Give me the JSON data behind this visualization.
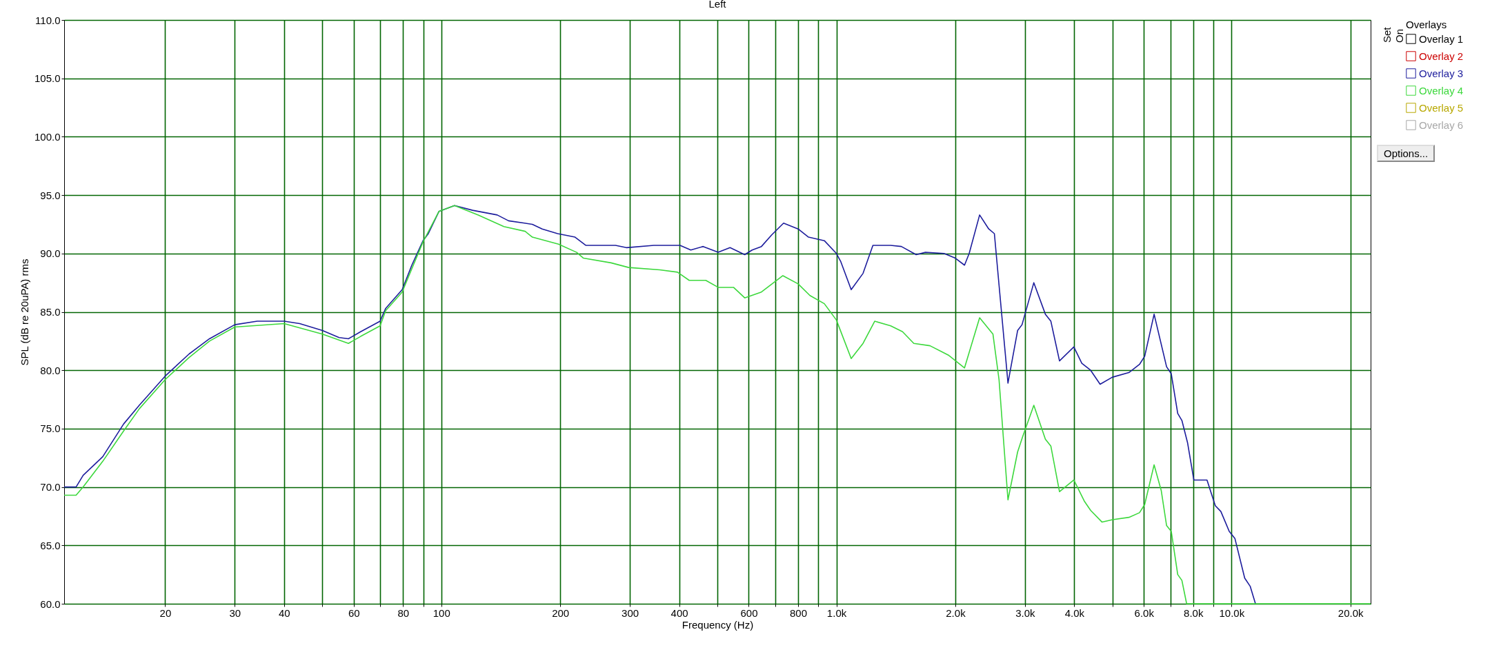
{
  "chart_data": {
    "type": "line",
    "title": "Left",
    "xlabel": "Frequency (Hz)",
    "ylabel": "SPL (dB re 20uPA) rms",
    "legend_title": "Overlays",
    "log": "x",
    "grid": true,
    "legend": "top right",
    "xlim": [
      11.1,
      22500
    ],
    "ylim": [
      60,
      110
    ],
    "xticks": [
      20,
      30,
      40,
      {
        "value": 50,
        "label": null
      },
      60,
      {
        "value": 70,
        "label": null
      },
      80,
      {
        "value": 90,
        "label": null
      },
      100,
      200,
      300,
      400,
      {
        "value": 500,
        "label": null
      },
      600,
      {
        "value": 700,
        "label": null
      },
      800,
      {
        "value": 900,
        "label": null
      },
      {
        "value": 1000,
        "label": "1.0k"
      },
      {
        "value": 2000,
        "label": "2.0k"
      },
      {
        "value": 3000,
        "label": "3.0k"
      },
      {
        "value": 4000,
        "label": "4.0k"
      },
      {
        "value": 5000,
        "label": null
      },
      {
        "value": 6000,
        "label": "6.0k"
      },
      {
        "value": 7000,
        "label": null
      },
      {
        "value": 8000,
        "label": "8.0k"
      },
      {
        "value": 9000,
        "label": null
      },
      {
        "value": 10000,
        "label": "10.0k"
      },
      {
        "value": 20000,
        "label": "20.0k"
      }
    ],
    "yticks": [
      {
        "value": 60,
        "label": "60.0"
      },
      {
        "value": 65,
        "label": "65.0"
      },
      {
        "value": 70,
        "label": "70.0"
      },
      {
        "value": 75,
        "label": "75.0"
      },
      {
        "value": 80,
        "label": "80.0"
      },
      {
        "value": 85,
        "label": "85.0"
      },
      {
        "value": 90,
        "label": "90.0"
      },
      {
        "value": 95,
        "label": "95.0"
      },
      {
        "value": 100,
        "label": "100.0"
      },
      {
        "value": 105,
        "label": "105.0"
      },
      {
        "value": 110,
        "label": "110.0"
      }
    ],
    "annotations": [
      "Set",
      "On",
      "Options..."
    ],
    "series": [
      {
        "name": "Overlay 1",
        "color": "#000000"
      },
      {
        "name": "Overlay 2",
        "color": "#cc0000"
      },
      {
        "name": "Overlay 3",
        "color": "#1c1c9c",
        "x": [
          11.1,
          11.9,
          12.4,
          13.9,
          15.7,
          17.2,
          20,
          23.0,
          25.9,
          30,
          34.2,
          40,
          43.8,
          50,
          55.1,
          58.2,
          62.5,
          70,
          72.3,
          79.6,
          84.2,
          89.9,
          92.7,
          98.6,
          108,
          120,
          138.5,
          148,
          170,
          180,
          197,
          218,
          232,
          276,
          294,
          345,
          402,
          428,
          460,
          502,
          538,
          586,
          612,
          646,
          686,
          735,
          800,
          850,
          932,
          1000,
          1026,
          1090,
          1168,
          1237,
          1372,
          1460,
          1592,
          1680,
          1873,
          2000,
          2110,
          2168,
          2304,
          2430,
          2511,
          2580,
          2718,
          2875,
          2950,
          3160,
          3380,
          3490,
          3670,
          3990,
          4180,
          4400,
          4650,
          4990,
          5500,
          5850,
          6030,
          6370,
          6850,
          7040,
          7310,
          7490,
          7740,
          8030,
          8670,
          9100,
          9400,
          9870,
          10200,
          10800,
          11150,
          11500
        ],
        "values": [
          70.0,
          70.0,
          71.0,
          72.6,
          75.4,
          77.0,
          79.5,
          81.4,
          82.7,
          83.9,
          84.2,
          84.2,
          84.0,
          83.4,
          82.8,
          82.7,
          83.3,
          84.2,
          85.3,
          86.9,
          89.0,
          91.1,
          91.7,
          93.6,
          94.1,
          93.7,
          93.3,
          92.8,
          92.5,
          92.1,
          91.7,
          91.4,
          90.7,
          90.7,
          90.5,
          90.7,
          90.7,
          90.3,
          90.6,
          90.1,
          90.5,
          89.9,
          90.3,
          90.6,
          91.6,
          92.6,
          92.1,
          91.4,
          91.1,
          90.0,
          89.3,
          86.9,
          88.3,
          90.7,
          90.7,
          90.6,
          89.9,
          90.1,
          90.0,
          89.6,
          89.0,
          90.0,
          93.3,
          92.1,
          91.7,
          87.3,
          78.9,
          83.4,
          83.9,
          87.5,
          84.8,
          84.2,
          80.8,
          82.0,
          80.6,
          80.0,
          78.8,
          79.4,
          79.8,
          80.5,
          81.2,
          84.8,
          80.3,
          79.7,
          76.3,
          75.7,
          73.8,
          70.6,
          70.6,
          68.4,
          67.9,
          66.2,
          65.6,
          62.2,
          61.5,
          60.0
        ]
      },
      {
        "name": "Overlay 4",
        "color": "#3cd83c",
        "x": [
          11.1,
          11.9,
          12.4,
          13.9,
          15.7,
          17.2,
          20,
          23.0,
          25.9,
          30,
          40,
          50,
          58.2,
          62.5,
          70,
          72.3,
          79.6,
          84.2,
          89.9,
          98.6,
          108,
          124,
          144,
          163,
          170,
          198,
          220,
          229,
          269,
          298,
          357,
          396,
          424,
          467,
          502,
          549,
          586,
          646,
          732,
          800,
          857,
          932,
          1000,
          1090,
          1168,
          1250,
          1372,
          1470,
          1570,
          1725,
          1920,
          2110,
          2304,
          2490,
          2580,
          2718,
          2875,
          2960,
          3160,
          3380,
          3490,
          3670,
          3990,
          4240,
          4400,
          4700,
          5000,
          5500,
          5850,
          6030,
          6370,
          6640,
          6850,
          7040,
          7310,
          7490,
          7700,
          22500
        ],
        "values": [
          69.3,
          69.3,
          70.0,
          72.2,
          74.8,
          76.7,
          79.2,
          81.1,
          82.5,
          83.7,
          84.0,
          83.1,
          82.3,
          82.9,
          83.8,
          85.1,
          86.7,
          88.7,
          91.0,
          93.6,
          94.1,
          93.3,
          92.3,
          91.9,
          91.4,
          90.8,
          90.1,
          89.6,
          89.2,
          88.8,
          88.6,
          88.4,
          87.7,
          87.7,
          87.1,
          87.1,
          86.2,
          86.7,
          88.1,
          87.4,
          86.4,
          85.7,
          84.3,
          81.0,
          82.3,
          84.2,
          83.8,
          83.3,
          82.3,
          82.1,
          81.3,
          80.2,
          84.5,
          83.1,
          79.2,
          68.9,
          73.0,
          74.3,
          77.0,
          74.1,
          73.5,
          69.6,
          70.6,
          68.8,
          68.0,
          67.0,
          67.2,
          67.4,
          67.8,
          68.5,
          71.9,
          69.7,
          66.7,
          66.2,
          62.5,
          62.0,
          60.0,
          60.0
        ]
      },
      {
        "name": "Overlay 5",
        "color": "#b8a800"
      },
      {
        "name": "Overlay 6",
        "color": "#a8a8a8"
      }
    ]
  }
}
